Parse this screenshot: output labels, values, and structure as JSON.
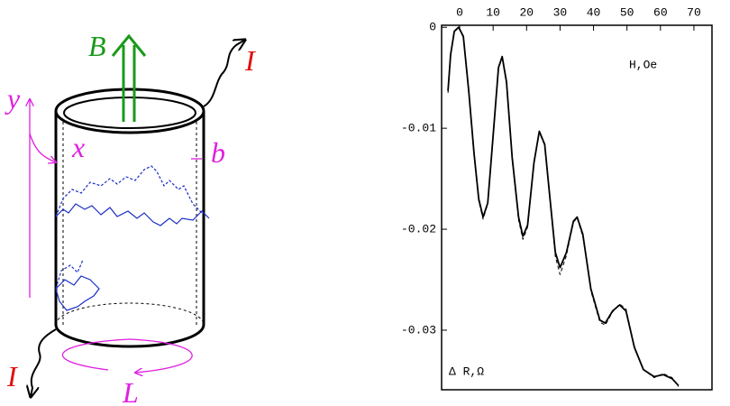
{
  "diagram": {
    "labels": {
      "field": "B",
      "current_top": "I",
      "current_bottom": "I",
      "axis_y": "y",
      "axis_x": "x",
      "width": "b",
      "circumference": "L"
    }
  },
  "chart_data": {
    "type": "line",
    "annotations": [
      "H,Oe",
      "Δ R,Ω"
    ],
    "x": [
      -3.5,
      -2.7,
      -1.6,
      -0.3,
      1.1,
      2.7,
      4.3,
      5.7,
      7.0,
      8.4,
      10,
      11.6,
      12.7,
      14,
      15.7,
      17.6,
      18.9,
      20.3,
      22.2,
      23.8,
      25.4,
      27,
      28.6,
      30,
      31.9,
      34,
      35.1,
      36.8,
      39.2,
      41.9,
      43.5,
      45.7,
      47.8,
      49.7,
      52.2,
      54.9,
      58.1,
      60.8,
      63.5,
      65.4
    ],
    "series": [
      {
        "color": "#000000",
        "dash": false,
        "values": [
          -0.0063,
          -0.0027,
          -0.0004,
          0,
          -0.0009,
          -0.0063,
          -0.0125,
          -0.017,
          -0.0188,
          -0.0174,
          -0.0107,
          -0.004,
          -0.0029,
          -0.0054,
          -0.0129,
          -0.0188,
          -0.0207,
          -0.0196,
          -0.0134,
          -0.0103,
          -0.0116,
          -0.017,
          -0.0223,
          -0.0238,
          -0.0223,
          -0.0192,
          -0.0188,
          -0.0205,
          -0.0259,
          -0.029,
          -0.0293,
          -0.0281,
          -0.0275,
          -0.0281,
          -0.0317,
          -0.0339,
          -0.0346,
          -0.0344,
          -0.0348,
          -0.0355
        ]
      },
      {
        "color": "#000000",
        "dash": true,
        "values": [
          -0.0065,
          -0.0028,
          -0.0005,
          0,
          -0.001,
          -0.0065,
          -0.0127,
          -0.0172,
          -0.019,
          -0.0175,
          -0.0108,
          -0.0041,
          -0.003,
          -0.0056,
          -0.0131,
          -0.0191,
          -0.021,
          -0.0198,
          -0.0135,
          -0.0104,
          -0.0117,
          -0.0172,
          -0.0227,
          -0.0245,
          -0.0226,
          -0.0193,
          -0.0189,
          -0.0207,
          -0.0261,
          -0.0292,
          -0.0295,
          -0.0282,
          -0.0274,
          -0.0279,
          -0.0316,
          -0.0339,
          -0.0347,
          -0.0343,
          -0.0347,
          -0.0356
        ]
      }
    ],
    "xlim": [
      -5.4,
      75.4
    ],
    "ylim": [
      -0.0359,
      0.0002
    ],
    "xticks": [
      0,
      10,
      20,
      30,
      40,
      50,
      60,
      70
    ],
    "yticks": [
      0,
      -0.01,
      -0.02,
      -0.03
    ]
  }
}
